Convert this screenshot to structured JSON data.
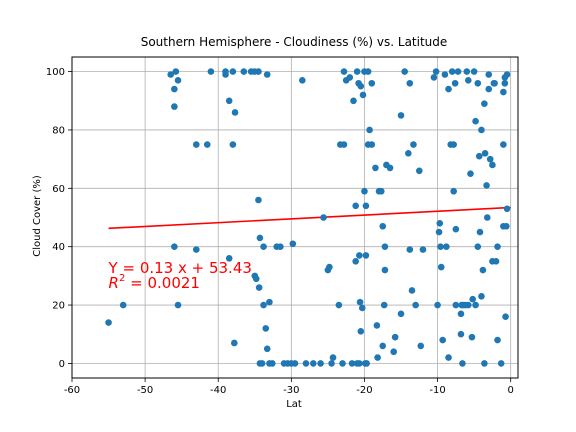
{
  "chart_data": {
    "type": "scatter",
    "title": "Southern Hemisphere - Cloudiness (%) vs. Latitude",
    "xlabel": "Lat",
    "ylabel": "Cloud Cover (%)",
    "xlim": [
      -60,
      1
    ],
    "ylim": [
      -5,
      105
    ],
    "xticks": [
      -60,
      -50,
      -40,
      -30,
      -20,
      -10,
      0
    ],
    "yticks": [
      0,
      20,
      40,
      60,
      80,
      100
    ],
    "grid": true,
    "point_color": "#1f77b4",
    "line_color": "#ff0000",
    "regression": {
      "slope": 0.13,
      "intercept": 53.43,
      "x_range": [
        -55,
        0
      ]
    },
    "annotation": {
      "line1": "Y = 0.13 x + 53.43",
      "line2_prefix": "R",
      "line2_sup": "2",
      "line2_suffix": " = 0.0021",
      "x": -55,
      "y": 31,
      "color": "#ff0000"
    },
    "points": [
      [
        -55,
        14
      ],
      [
        -53,
        20
      ],
      [
        -46.5,
        99
      ],
      [
        -46,
        94
      ],
      [
        -46,
        88
      ],
      [
        -46,
        40
      ],
      [
        -45.5,
        97
      ],
      [
        -45.5,
        20
      ],
      [
        -45.8,
        100
      ],
      [
        -43,
        75
      ],
      [
        -43,
        39
      ],
      [
        -41.5,
        75
      ],
      [
        -41,
        100
      ],
      [
        -39,
        99
      ],
      [
        -39,
        100
      ],
      [
        -38.5,
        90
      ],
      [
        -38.5,
        36
      ],
      [
        -38,
        100
      ],
      [
        -38,
        75
      ],
      [
        -37.7,
        86
      ],
      [
        -37.8,
        7
      ],
      [
        -36.5,
        100
      ],
      [
        -35.5,
        100
      ],
      [
        -35,
        100
      ],
      [
        -35,
        30
      ],
      [
        -34.5,
        100
      ],
      [
        -34.8,
        29
      ],
      [
        -34.5,
        56
      ],
      [
        -34.3,
        43
      ],
      [
        -34.4,
        26
      ],
      [
        -34.3,
        0
      ],
      [
        -34,
        0
      ],
      [
        -33.8,
        20
      ],
      [
        -33.5,
        12
      ],
      [
        -33.8,
        40
      ],
      [
        -33.3,
        99
      ],
      [
        -33.3,
        5
      ],
      [
        -33,
        0
      ],
      [
        -33,
        21
      ],
      [
        -32.6,
        0
      ],
      [
        -32,
        40
      ],
      [
        -31.5,
        40
      ],
      [
        -31,
        0
      ],
      [
        -30.5,
        0
      ],
      [
        -30,
        0
      ],
      [
        -29.8,
        41
      ],
      [
        -29.5,
        0
      ],
      [
        -28.5,
        97
      ],
      [
        -28,
        0
      ],
      [
        -27,
        0
      ],
      [
        -26,
        0
      ],
      [
        -25.6,
        50
      ],
      [
        -25,
        32
      ],
      [
        -24.8,
        33
      ],
      [
        -24.5,
        0
      ],
      [
        -24.3,
        2
      ],
      [
        -23.5,
        20
      ],
      [
        -23.3,
        75
      ],
      [
        -22.8,
        75
      ],
      [
        -23,
        0
      ],
      [
        -22.5,
        97
      ],
      [
        -22.8,
        100
      ],
      [
        -22,
        98
      ],
      [
        -21.5,
        90
      ],
      [
        -21.2,
        54
      ],
      [
        -21,
        100
      ],
      [
        -21.2,
        35
      ],
      [
        -20.8,
        96
      ],
      [
        -20.6,
        21
      ],
      [
        -20.7,
        37
      ],
      [
        -20.5,
        11
      ],
      [
        -20.3,
        19
      ],
      [
        -20.5,
        95
      ],
      [
        -20.2,
        92
      ],
      [
        -20,
        100
      ],
      [
        -20,
        59
      ],
      [
        -19.8,
        54
      ],
      [
        -19.8,
        37
      ],
      [
        -19.9,
        0
      ],
      [
        -21.7,
        0
      ],
      [
        -21,
        0
      ],
      [
        -20.7,
        0
      ],
      [
        -19.5,
        75
      ],
      [
        -19.3,
        80
      ],
      [
        -19.5,
        100
      ],
      [
        -19,
        96
      ],
      [
        -19.7,
        0
      ],
      [
        -19,
        75
      ],
      [
        -18.5,
        67
      ],
      [
        -18.3,
        13
      ],
      [
        -18.2,
        2
      ],
      [
        -18,
        59
      ],
      [
        -17.7,
        59
      ],
      [
        -17.5,
        6
      ],
      [
        -17.5,
        47
      ],
      [
        -17.2,
        32
      ],
      [
        -17.2,
        40
      ],
      [
        -17.3,
        20
      ],
      [
        -17,
        68
      ],
      [
        -16.5,
        67
      ],
      [
        -16,
        4
      ],
      [
        -15.8,
        9
      ],
      [
        -15,
        85
      ],
      [
        -15,
        17
      ],
      [
        -14.5,
        100
      ],
      [
        -14,
        72
      ],
      [
        -13.8,
        96
      ],
      [
        -13.8,
        39
      ],
      [
        -13.5,
        25
      ],
      [
        -13.3,
        75
      ],
      [
        -13,
        20
      ],
      [
        -12.5,
        66
      ],
      [
        -12.3,
        6
      ],
      [
        -12,
        39
      ],
      [
        -10.5,
        98
      ],
      [
        -10.2,
        100
      ],
      [
        -10,
        20
      ],
      [
        -9.8,
        45
      ],
      [
        -9.7,
        48
      ],
      [
        -9.6,
        40
      ],
      [
        -9.5,
        33
      ],
      [
        -9.3,
        8
      ],
      [
        -9,
        99
      ],
      [
        -8.8,
        40
      ],
      [
        -8.5,
        2
      ],
      [
        -8.5,
        94
      ],
      [
        -8.2,
        75
      ],
      [
        -8,
        100
      ],
      [
        -7.8,
        75
      ],
      [
        -7.8,
        59
      ],
      [
        -7.6,
        96
      ],
      [
        -7.5,
        46
      ],
      [
        -7.5,
        20
      ],
      [
        -7.2,
        100
      ],
      [
        -6.8,
        17
      ],
      [
        -6.8,
        10
      ],
      [
        -6.7,
        20
      ],
      [
        -6.6,
        0
      ],
      [
        -6.5,
        20
      ],
      [
        -6.2,
        20
      ],
      [
        -6,
        100
      ],
      [
        -5.8,
        97
      ],
      [
        -5.8,
        20
      ],
      [
        -5.5,
        65
      ],
      [
        -5.3,
        9
      ],
      [
        -5.2,
        22
      ],
      [
        -5,
        100
      ],
      [
        -4.8,
        83
      ],
      [
        -4.8,
        20
      ],
      [
        -4.5,
        40
      ],
      [
        -4.5,
        96
      ],
      [
        -4.3,
        71
      ],
      [
        -4.2,
        45
      ],
      [
        -4,
        23
      ],
      [
        -4,
        80
      ],
      [
        -3.8,
        32
      ],
      [
        -3.6,
        89
      ],
      [
        -3.6,
        0
      ],
      [
        -3.5,
        72
      ],
      [
        -3.3,
        61
      ],
      [
        -3.2,
        50
      ],
      [
        -3,
        94
      ],
      [
        -3,
        99
      ],
      [
        -2.8,
        70
      ],
      [
        -2.5,
        68
      ],
      [
        -2.5,
        35
      ],
      [
        -2.3,
        96
      ],
      [
        -2.2,
        96
      ],
      [
        -2,
        35
      ],
      [
        -1.8,
        40
      ],
      [
        -1.8,
        8
      ],
      [
        -1.3,
        0
      ],
      [
        -1,
        93
      ],
      [
        -1,
        75
      ],
      [
        -1,
        47
      ],
      [
        -0.8,
        96
      ],
      [
        -0.8,
        98
      ],
      [
        -0.7,
        16
      ],
      [
        -0.6,
        47
      ],
      [
        -0.5,
        99
      ],
      [
        -0.5,
        53
      ]
    ]
  }
}
